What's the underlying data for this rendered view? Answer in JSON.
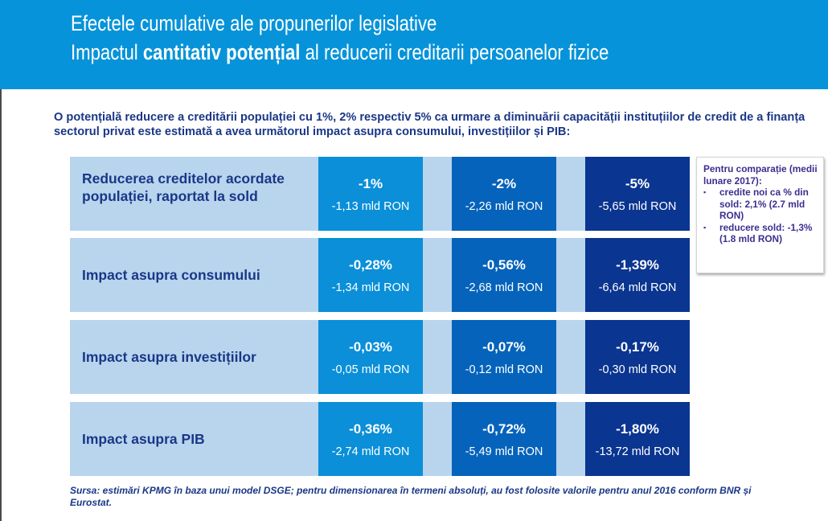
{
  "header": {
    "title": "Efectele cumulative ale propunerilor legislative",
    "subtitle_pre": "Impactul ",
    "subtitle_bold": "cantitativ potențial",
    "subtitle_post": " al reducerii creditarii persoanelor fizice"
  },
  "intro": "O potențială reducere a creditării populației cu 1%, 2% respectiv 5% ca urmare a diminuării capacității instituțiilor de credit de a finanța sectorul privat este estimată a avea următorul impact asupra consumului, investițiilor și PIB:",
  "table": {
    "rows": [
      {
        "label": "Reducerea creditelor acordate populației, raportat la sold",
        "cells": [
          {
            "pct": "-1%",
            "abs": "-1,13 mld RON"
          },
          {
            "pct": "-2%",
            "abs": "-2,26 mld RON"
          },
          {
            "pct": "-5%",
            "abs": "-5,65 mld RON"
          }
        ]
      },
      {
        "label": "Impact asupra consumului",
        "cells": [
          {
            "pct": "-0,28%",
            "abs": "-1,34 mld RON"
          },
          {
            "pct": "-0,56%",
            "abs": "-2,68 mld RON"
          },
          {
            "pct": "-1,39%",
            "abs": "-6,64 mld RON"
          }
        ]
      },
      {
        "label": "Impact asupra investițiilor",
        "cells": [
          {
            "pct": "-0,03%",
            "abs": "-0,05 mld RON"
          },
          {
            "pct": "-0,07%",
            "abs": "-0,12 mld RON"
          },
          {
            "pct": "-0,17%",
            "abs": "-0,30 mld RON"
          }
        ]
      },
      {
        "label": "Impact asupra PIB",
        "cells": [
          {
            "pct": "-0,36%",
            "abs": "-2,74 mld RON"
          },
          {
            "pct": "-0,72%",
            "abs": "-5,49 mld RON"
          },
          {
            "pct": "-1,80%",
            "abs": "-13,72 mld RON"
          }
        ]
      }
    ]
  },
  "comparison": {
    "title": "Pentru comparație (medii lunare 2017):",
    "bullet_glyph": "▪",
    "bullets": [
      "credite noi ca % din sold: 2,1% (2.7 mld RON)",
      "reducere sold: -1,3% (1.8 mld RON)"
    ]
  },
  "source": "Sursa: estimări KPMG în baza unui model DSGE; pentru dimensionarea în termeni absoluți, au fost folosite valorile pentru anul 2016 conform BNR și Eurostat.",
  "colors": {
    "header_bg": "#0793d9",
    "row_bg": "#b9d5ee",
    "col_1pct": "#0a8fd8",
    "col_2pct": "#0563bb",
    "col_5pct": "#0a3590",
    "text_navy": "#1a3787",
    "comparison_text": "#3b2f8f"
  }
}
